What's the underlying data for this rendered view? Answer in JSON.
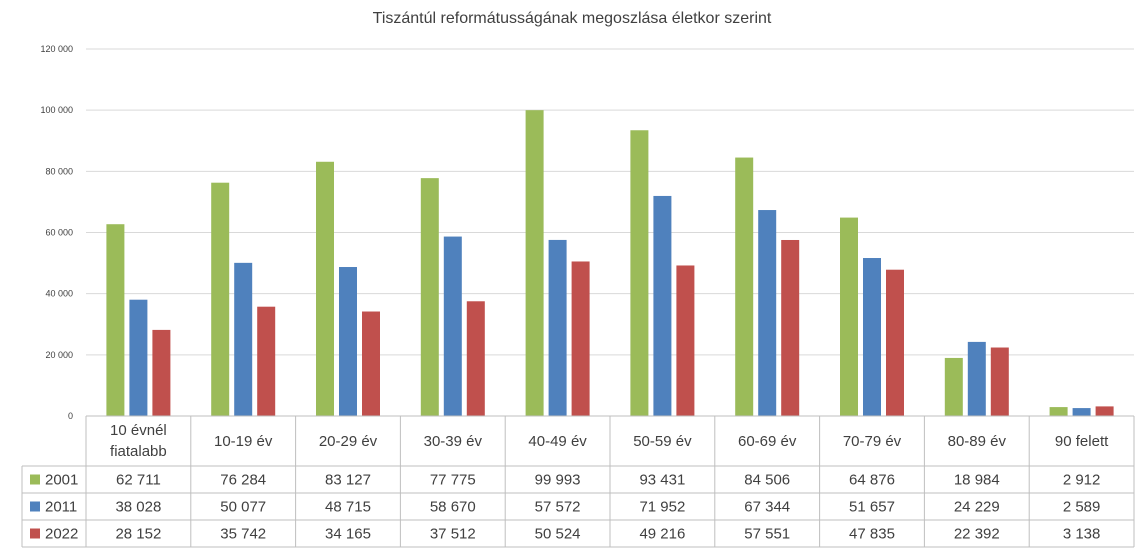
{
  "chart_data": {
    "type": "bar",
    "title": "Tiszántúl reformátusságának megoszlása életkor szerint",
    "categories": [
      "10 évnél\nfiatalabb",
      "10-19 év",
      "20-29 év",
      "30-39 év",
      "40-49 év",
      "50-59 év",
      "60-69 év",
      "70-79 év",
      "80-89 év",
      "90 felett"
    ],
    "ylim": [
      0,
      120000
    ],
    "yticks": [
      0,
      20000,
      40000,
      60000,
      80000,
      100000,
      120000
    ],
    "ytick_labels": [
      "0",
      "20 000",
      "40 000",
      "60 000",
      "80 000",
      "100 000",
      "120 000"
    ],
    "grid": true,
    "legend": "data-table",
    "series": [
      {
        "name": "2001",
        "color": "#9bbb59",
        "values": [
          62711,
          76284,
          83127,
          77775,
          99993,
          93431,
          84506,
          64876,
          18984,
          2912
        ],
        "labels": [
          "62 711",
          "76 284",
          "83 127",
          "77 775",
          "99 993",
          "93 431",
          "84 506",
          "64 876",
          "18 984",
          "2 912"
        ]
      },
      {
        "name": "2011",
        "color": "#4f81bd",
        "values": [
          38028,
          50077,
          48715,
          58670,
          57572,
          71952,
          67344,
          51657,
          24229,
          2589
        ],
        "labels": [
          "38 028",
          "50 077",
          "48 715",
          "58 670",
          "57 572",
          "71 952",
          "67 344",
          "51 657",
          "24 229",
          "2 589"
        ]
      },
      {
        "name": "2022",
        "color": "#c0504d",
        "values": [
          28152,
          35742,
          34165,
          37512,
          50524,
          49216,
          57551,
          47835,
          22392,
          3138
        ],
        "labels": [
          "28 152",
          "35 742",
          "34 165",
          "37 512",
          "50 524",
          "49 216",
          "57 551",
          "47 835",
          "22 392",
          "3 138"
        ]
      }
    ]
  }
}
